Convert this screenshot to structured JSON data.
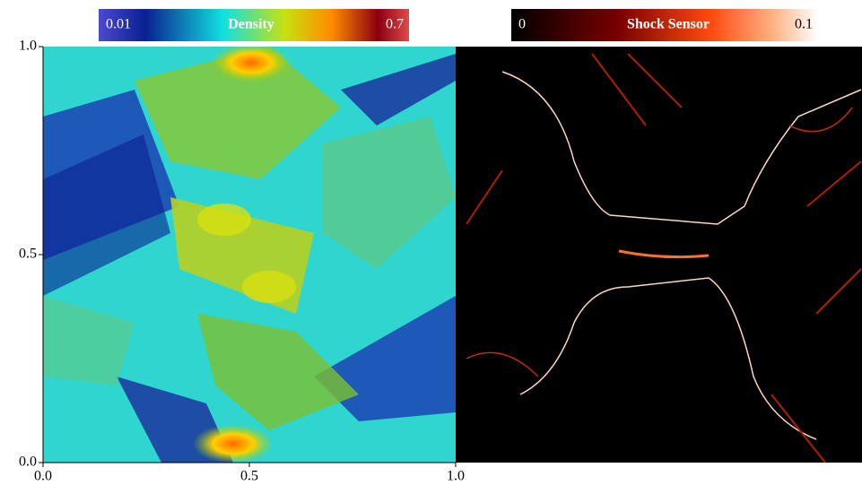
{
  "density_panel": {
    "colorbar": {
      "title": "Density",
      "min": 0.01,
      "max": 0.7
    },
    "xlim": [
      0,
      1
    ],
    "ylim": [
      0,
      1
    ],
    "xticks": [
      {
        "value": 0,
        "label": "0.0"
      },
      {
        "value": 0.5,
        "label": "0.5"
      },
      {
        "value": 1,
        "label": "1.0"
      }
    ],
    "yticks": [
      {
        "value": 0,
        "label": "0.0"
      },
      {
        "value": 0.5,
        "label": "0.5"
      },
      {
        "value": 1,
        "label": "1.0"
      }
    ]
  },
  "shock_panel": {
    "colorbar": {
      "title": "Shock Sensor",
      "min": 0,
      "max": 0.1
    }
  }
}
